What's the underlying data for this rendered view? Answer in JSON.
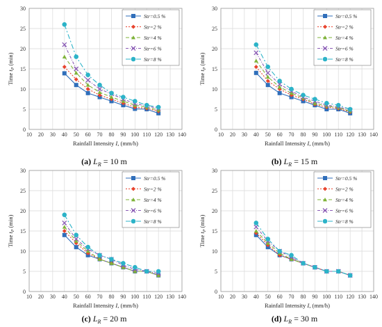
{
  "colors": [
    "#2F6EBA",
    "#E8442E",
    "#7FB33A",
    "#8A5BB5",
    "#2CB3C8"
  ],
  "markers": [
    "square",
    "diamond",
    "triangle",
    "x",
    "circle"
  ],
  "dashes": [
    "",
    "2,2",
    "5,3",
    "4,2,1,2",
    "7,3,2,3"
  ],
  "chart_data": [
    {
      "type": "line",
      "caption_letter": "(a)",
      "caption_text": "L",
      "caption_sub": "R",
      "caption_value": " = 10 m",
      "ylabel": "Time",
      "ylabel_symbol": "t",
      "ylabel_sub": "P",
      "ylabel_unit": " (min)",
      "xlabel": "Rainfall Intensity",
      "xlabel_symbol": "I",
      "xlabel_unit": ", (mm/h)",
      "xlim": [
        10,
        140
      ],
      "ylim": [
        0,
        30
      ],
      "xticks": [
        10,
        20,
        30,
        40,
        50,
        60,
        70,
        80,
        90,
        100,
        110,
        120,
        130,
        140
      ],
      "yticks": [
        0,
        5,
        10,
        15,
        20,
        25,
        30
      ],
      "grid": true,
      "legend_position": "top-right",
      "x": [
        40,
        50,
        60,
        70,
        80,
        90,
        100,
        110,
        120
      ],
      "series": [
        {
          "name": "Str=0.5 %",
          "values": [
            13.9,
            11.0,
            9.0,
            8.0,
            7.0,
            6.0,
            5.1,
            5.0,
            4.0
          ]
        },
        {
          "name": "Str=2 %",
          "values": [
            15.5,
            12.4,
            10.0,
            8.5,
            7.5,
            6.5,
            5.5,
            5.2,
            4.5
          ]
        },
        {
          "name": "Str=4 %",
          "values": [
            18.0,
            14.0,
            11.0,
            9.2,
            8.0,
            7.0,
            6.0,
            5.5,
            4.8
          ]
        },
        {
          "name": "Str=6 %",
          "values": [
            21.0,
            15.0,
            12.2,
            10.0,
            8.8,
            7.5,
            6.4,
            5.8,
            5.2
          ]
        },
        {
          "name": "Str=8 %",
          "values": [
            26.0,
            18.0,
            13.5,
            11.0,
            9.0,
            8.0,
            7.0,
            6.0,
            5.5
          ]
        }
      ]
    },
    {
      "type": "line",
      "caption_letter": "(b)",
      "caption_text": "L",
      "caption_sub": "R",
      "caption_value": " = 15 m",
      "ylabel": "Time",
      "ylabel_symbol": "t",
      "ylabel_sub": "P",
      "ylabel_unit": " (min)",
      "xlabel": "Rainfall Intensity",
      "xlabel_symbol": "I",
      "xlabel_unit": ", (mm/h)",
      "xlim": [
        10,
        140
      ],
      "ylim": [
        0,
        30
      ],
      "xticks": [
        10,
        20,
        30,
        40,
        50,
        60,
        70,
        80,
        90,
        100,
        110,
        120,
        130,
        140
      ],
      "yticks": [
        0,
        5,
        10,
        15,
        20,
        25,
        30
      ],
      "grid": true,
      "legend_position": "top-right",
      "x": [
        40,
        50,
        60,
        70,
        80,
        90,
        100,
        110,
        120
      ],
      "series": [
        {
          "name": "Str=0.5 %",
          "values": [
            14.0,
            11.0,
            9.0,
            8.0,
            7.0,
            6.0,
            5.0,
            5.0,
            4.0
          ]
        },
        {
          "name": "Str=2 %",
          "values": [
            15.5,
            12.0,
            10.0,
            8.5,
            7.5,
            6.2,
            5.5,
            5.2,
            4.3
          ]
        },
        {
          "name": "Str=4 %",
          "values": [
            17.0,
            13.0,
            10.5,
            9.0,
            7.8,
            6.5,
            5.8,
            5.4,
            4.5
          ]
        },
        {
          "name": "Str=6 %",
          "values": [
            19.0,
            14.0,
            11.2,
            9.5,
            8.0,
            7.0,
            6.0,
            5.6,
            4.8
          ]
        },
        {
          "name": "Str=8 %",
          "values": [
            21.0,
            15.5,
            12.0,
            10.0,
            8.5,
            7.5,
            6.5,
            6.0,
            5.0
          ]
        }
      ]
    },
    {
      "type": "line",
      "caption_letter": "(c)",
      "caption_text": "L",
      "caption_sub": "R",
      "caption_value": " = 20 m",
      "ylabel": "Time",
      "ylabel_symbol": "t",
      "ylabel_sub": "P",
      "ylabel_unit": " (min)",
      "xlabel": "Rainfall Intensity",
      "xlabel_symbol": "I",
      "xlabel_unit": ", (mm/h)",
      "xlim": [
        10,
        140
      ],
      "ylim": [
        0,
        30
      ],
      "xticks": [
        10,
        20,
        30,
        40,
        50,
        60,
        70,
        80,
        90,
        100,
        110,
        120,
        130,
        140
      ],
      "yticks": [
        0,
        5,
        10,
        15,
        20,
        25,
        30
      ],
      "grid": true,
      "legend_position": "top-right",
      "x": [
        40,
        50,
        60,
        70,
        80,
        90,
        100,
        110,
        120
      ],
      "series": [
        {
          "name": "Str=0.5 %",
          "values": [
            14.0,
            11.0,
            9.0,
            8.0,
            7.0,
            6.0,
            5.0,
            5.0,
            4.0
          ]
        },
        {
          "name": "Str=2 %",
          "values": [
            15.0,
            12.0,
            9.5,
            8.0,
            7.0,
            6.0,
            5.0,
            5.0,
            4.0
          ]
        },
        {
          "name": "Str=4 %",
          "values": [
            16.0,
            12.5,
            10.0,
            8.0,
            7.0,
            6.0,
            5.0,
            5.0,
            4.0
          ]
        },
        {
          "name": "Str=6 %",
          "values": [
            17.0,
            13.0,
            10.5,
            9.0,
            8.0,
            6.5,
            5.5,
            5.0,
            4.5
          ]
        },
        {
          "name": "Str=8 %",
          "values": [
            19.0,
            14.0,
            11.0,
            9.0,
            8.0,
            7.0,
            6.0,
            5.0,
            5.0
          ]
        }
      ]
    },
    {
      "type": "line",
      "caption_letter": "(d)",
      "caption_text": "L",
      "caption_sub": "R",
      "caption_value": " = 30 m",
      "ylabel": "Time",
      "ylabel_symbol": "t",
      "ylabel_sub": "P",
      "ylabel_unit": " (min)",
      "xlabel": "Rainfall Intensity",
      "xlabel_symbol": "I",
      "xlabel_unit": ", (mm/h)",
      "xlim": [
        10,
        140
      ],
      "ylim": [
        0,
        30
      ],
      "xticks": [
        10,
        20,
        30,
        40,
        50,
        60,
        70,
        80,
        90,
        100,
        110,
        120,
        130,
        140
      ],
      "yticks": [
        0,
        5,
        10,
        15,
        20,
        25,
        30
      ],
      "grid": true,
      "legend_position": "top-right",
      "x": [
        40,
        50,
        60,
        70,
        80,
        90,
        100,
        110,
        120
      ],
      "series": [
        {
          "name": "Str=0.5 %",
          "values": [
            14.0,
            11.0,
            9.0,
            8.0,
            7.0,
            6.0,
            5.0,
            5.0,
            4.0
          ]
        },
        {
          "name": "Str=2 %",
          "values": [
            14.5,
            11.5,
            9.0,
            8.0,
            7.0,
            6.0,
            5.0,
            5.0,
            4.0
          ]
        },
        {
          "name": "Str=4 %",
          "values": [
            15.0,
            12.0,
            9.5,
            8.0,
            7.0,
            6.0,
            5.0,
            5.0,
            4.0
          ]
        },
        {
          "name": "Str=6 %",
          "values": [
            16.0,
            12.5,
            10.0,
            8.5,
            7.0,
            6.0,
            5.0,
            5.0,
            4.0
          ]
        },
        {
          "name": "Str=8 %",
          "values": [
            17.0,
            13.0,
            10.0,
            9.0,
            7.0,
            6.0,
            5.0,
            5.0,
            4.0
          ]
        }
      ]
    }
  ]
}
